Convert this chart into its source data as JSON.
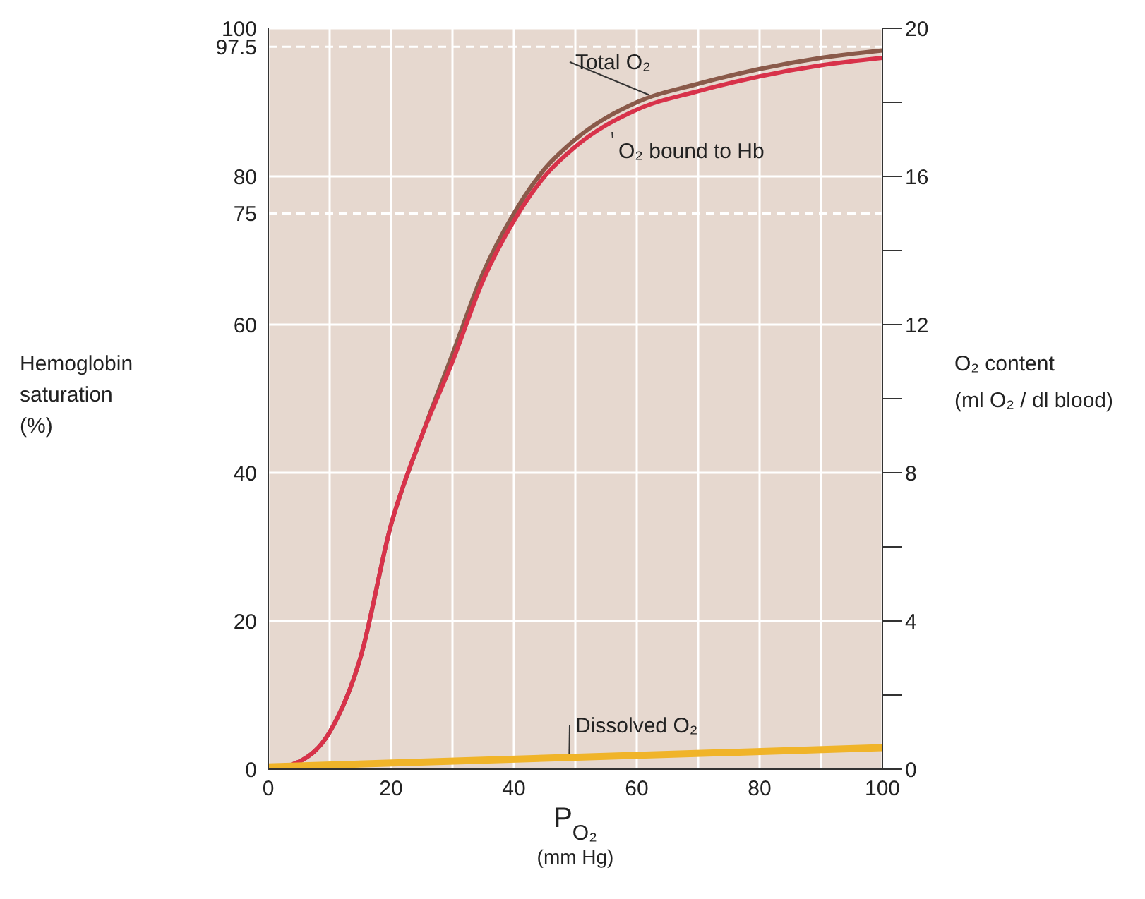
{
  "chart_data": {
    "type": "line",
    "xlabel": "P$_{O₂}$\n(mm Hg)",
    "ylabel": "Hemoglobin\nsaturation\n(%)",
    "y2label": "O₂ content\n(ml O₂ / dl blood)",
    "x": [
      0,
      5,
      10,
      15,
      20,
      25,
      30,
      35,
      40,
      45,
      50,
      60,
      70,
      80,
      90,
      100
    ],
    "series": [
      {
        "name": "Total O₂",
        "color": "#8a5a4a",
        "values": [
          0,
          1,
          5,
          15,
          33,
          45,
          56,
          67,
          75,
          81,
          85,
          90,
          92.5,
          94.5,
          96,
          97
        ]
      },
      {
        "name": "O₂ bound to Hb",
        "color": "#d8324a",
        "values": [
          0,
          1,
          5,
          15,
          33,
          45,
          55,
          66,
          74,
          80,
          84,
          89,
          91.5,
          93.5,
          95,
          96
        ]
      },
      {
        "name": "Dissolved O₂",
        "color": "#f0b429",
        "x": [
          0,
          100
        ],
        "values": [
          0.3,
          2.9
        ]
      }
    ],
    "xlim": [
      0,
      100
    ],
    "xticks": [
      0,
      {
        "value": 10,
        "label": null
      },
      20,
      {
        "value": 30,
        "label": null
      },
      40,
      {
        "value": 50,
        "label": null
      },
      60,
      {
        "value": 70,
        "label": null
      },
      80,
      {
        "value": 90,
        "label": null
      },
      100
    ],
    "ylim": [
      0,
      100
    ],
    "yticks": [
      0,
      20,
      40,
      60,
      75,
      80,
      97.5,
      100
    ],
    "y2lim": [
      0,
      20
    ],
    "y2ticks": [
      0,
      {
        "value": 2,
        "label": null
      },
      4,
      {
        "value": 6,
        "label": null
      },
      8,
      {
        "value": 10,
        "label": null
      },
      12,
      {
        "value": 14,
        "label": null
      },
      16,
      {
        "value": 18,
        "label": null
      },
      20
    ],
    "grid": true,
    "legend": false,
    "marker": "none",
    "line_style": "solid"
  }
}
